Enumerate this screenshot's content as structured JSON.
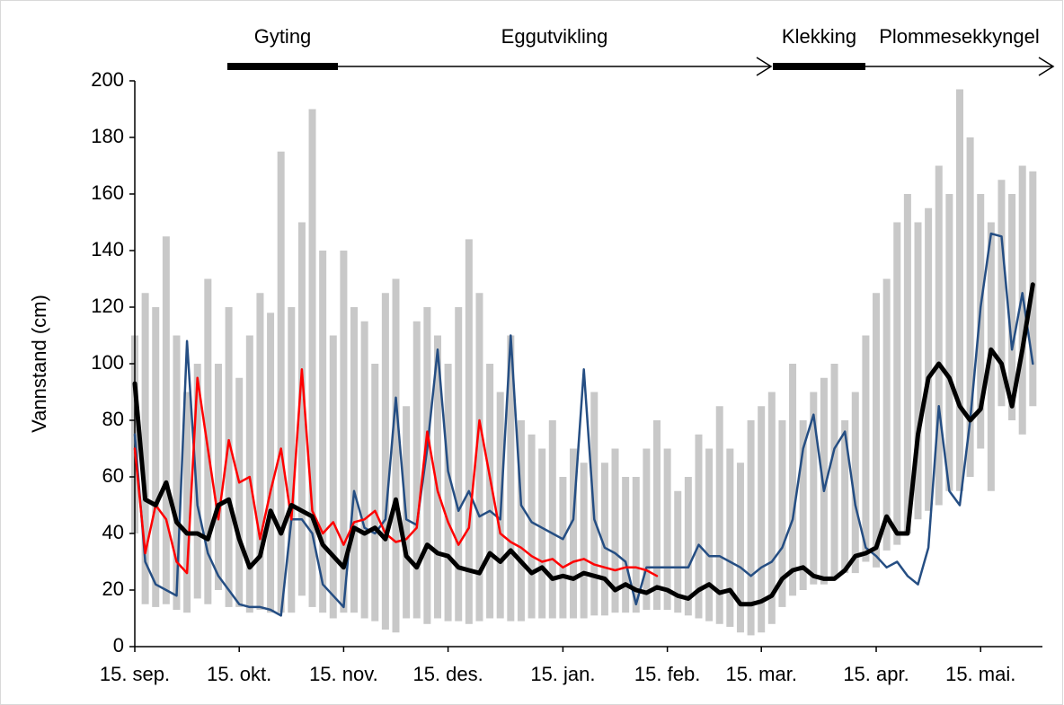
{
  "chart_data": {
    "type": "line",
    "y_label": "Vannstand (cm)",
    "ylim": [
      0,
      200
    ],
    "yticks": [
      0,
      20,
      40,
      60,
      80,
      100,
      120,
      140,
      160,
      180,
      200
    ],
    "phases": [
      {
        "label": "Gyting",
        "style": "bar"
      },
      {
        "label": "Eggutvikling",
        "style": "arrow"
      },
      {
        "label": "Klekking",
        "style": "bar"
      },
      {
        "label": "Plommesekkyngel",
        "style": "arrow"
      }
    ],
    "categories": [
      "15. sep.",
      null,
      null,
      null,
      null,
      null,
      null,
      null,
      null,
      null,
      "15. okt.",
      null,
      null,
      null,
      null,
      null,
      null,
      null,
      null,
      null,
      "15. nov.",
      null,
      null,
      null,
      null,
      null,
      null,
      null,
      null,
      null,
      "15. des.",
      null,
      null,
      null,
      null,
      null,
      null,
      null,
      null,
      null,
      null,
      "15. jan.",
      null,
      null,
      null,
      null,
      null,
      null,
      null,
      null,
      null,
      "15. feb.",
      null,
      null,
      null,
      null,
      null,
      null,
      null,
      null,
      "15. mar.",
      null,
      null,
      null,
      null,
      null,
      null,
      null,
      null,
      null,
      null,
      "15. apr.",
      null,
      null,
      null,
      null,
      null,
      null,
      null,
      null,
      null,
      "15. mai.",
      null,
      null,
      null,
      null,
      null
    ],
    "range": {
      "color": "#c8c8c8",
      "high": [
        110,
        125,
        120,
        145,
        110,
        90,
        100,
        130,
        100,
        120,
        95,
        110,
        125,
        118,
        175,
        120,
        150,
        190,
        140,
        110,
        140,
        120,
        115,
        100,
        125,
        130,
        85,
        115,
        120,
        110,
        100,
        120,
        144,
        125,
        100,
        90,
        110,
        80,
        75,
        70,
        80,
        60,
        70,
        65,
        90,
        65,
        70,
        60,
        60,
        70,
        80,
        70,
        55,
        60,
        75,
        70,
        85,
        70,
        65,
        80,
        85,
        90,
        80,
        100,
        80,
        90,
        95,
        100,
        80,
        90,
        110,
        125,
        130,
        150,
        160,
        150,
        155,
        170,
        160,
        197,
        180,
        160,
        150,
        165,
        160,
        170,
        168
      ],
      "low": [
        40,
        15,
        14,
        15,
        13,
        12,
        17,
        15,
        20,
        14,
        14,
        12,
        13,
        12,
        12,
        12,
        18,
        14,
        12,
        10,
        12,
        12,
        10,
        9,
        6,
        5,
        10,
        10,
        8,
        10,
        9,
        9,
        8,
        9,
        10,
        10,
        9,
        9,
        10,
        10,
        10,
        10,
        10,
        10,
        11,
        11,
        12,
        12,
        12,
        13,
        13,
        13,
        12,
        11,
        10,
        9,
        8,
        7,
        5,
        4,
        5,
        8,
        14,
        18,
        20,
        22,
        22,
        24,
        26,
        26,
        30,
        28,
        34,
        36,
        40,
        45,
        48,
        50,
        55,
        55,
        60,
        70,
        55,
        85,
        80,
        75,
        85
      ]
    },
    "series": [
      {
        "color": "#254e83",
        "width": 2.5,
        "values": [
          75,
          30,
          22,
          20,
          18,
          108,
          50,
          33,
          25,
          20,
          15,
          14,
          14,
          13,
          11,
          45,
          45,
          40,
          22,
          18,
          14,
          55,
          42,
          40,
          45,
          88,
          45,
          43,
          70,
          105,
          62,
          48,
          55,
          46,
          48,
          45,
          110,
          50,
          44,
          42,
          40,
          38,
          45,
          98,
          45,
          35,
          33,
          30,
          15,
          28,
          28,
          28,
          28,
          28,
          36,
          32,
          32,
          30,
          28,
          25,
          28,
          30,
          35,
          45,
          70,
          82,
          55,
          70,
          76,
          50,
          35,
          32,
          28,
          30,
          25,
          22,
          35,
          85,
          55,
          50,
          80,
          120,
          146,
          145,
          105,
          125,
          100
        ]
      },
      {
        "color": "#ff0000",
        "width": 2.5,
        "values": [
          70,
          33,
          50,
          45,
          30,
          26,
          95,
          70,
          45,
          73,
          58,
          60,
          38,
          55,
          70,
          45,
          98,
          48,
          40,
          44,
          36,
          44,
          45,
          48,
          40,
          37,
          38,
          42,
          76,
          55,
          44,
          36,
          42,
          80,
          60,
          40,
          37,
          35,
          32,
          30,
          31,
          28,
          30,
          31,
          29,
          28,
          27,
          28,
          28,
          27,
          25,
          null,
          null,
          null,
          null,
          null,
          null,
          null,
          null,
          null,
          null,
          null,
          null,
          null,
          null,
          null,
          null,
          null,
          null,
          null,
          null,
          null,
          null,
          null,
          null,
          null,
          null,
          null,
          null,
          null,
          null,
          null,
          null,
          null,
          null,
          null,
          null
        ]
      },
      {
        "color": "#000000",
        "width": 5,
        "values": [
          93,
          52,
          50,
          58,
          44,
          40,
          40,
          38,
          50,
          52,
          38,
          28,
          32,
          48,
          40,
          50,
          48,
          46,
          36,
          32,
          28,
          42,
          40,
          42,
          38,
          52,
          32,
          28,
          36,
          33,
          32,
          28,
          27,
          26,
          33,
          30,
          34,
          30,
          26,
          28,
          24,
          25,
          24,
          26,
          25,
          24,
          20,
          22,
          20,
          19,
          21,
          20,
          18,
          17,
          20,
          22,
          19,
          20,
          15,
          15,
          16,
          18,
          24,
          27,
          28,
          25,
          24,
          24,
          27,
          32,
          33,
          35,
          46,
          40,
          40,
          75,
          95,
          100,
          95,
          85,
          80,
          84,
          105,
          100,
          85,
          105,
          128
        ]
      }
    ]
  }
}
